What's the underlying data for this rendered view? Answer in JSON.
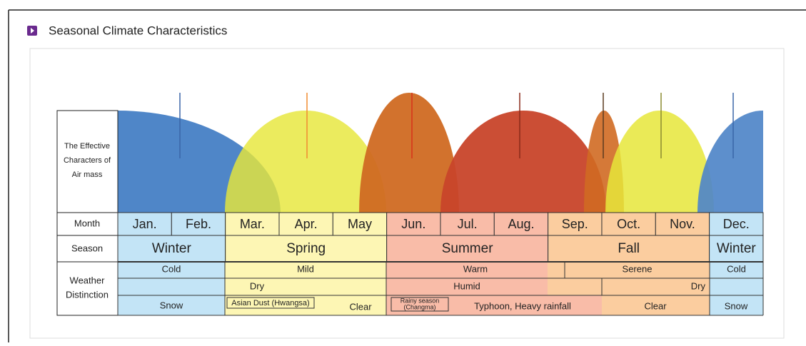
{
  "title": "Seasonal Climate Characteristics",
  "row_labels": {
    "air_mass": [
      "The Effective",
      "Characters of",
      "Air mass"
    ],
    "month": "Month",
    "season": "Season",
    "weather": [
      "Weather",
      "Distinction"
    ]
  },
  "months": [
    "Jan.",
    "Feb.",
    "Mar.",
    "Apr.",
    "May",
    "Jun.",
    "Jul.",
    "Aug.",
    "Sep.",
    "Oct.",
    "Nov.",
    "Dec."
  ],
  "seasons": [
    "Winter",
    "Spring",
    "Summer",
    "Fall",
    "Winter"
  ],
  "weather": {
    "temperature": [
      "Cold",
      "Mild",
      "Warm",
      "Serene",
      "Cold"
    ],
    "humidity": [
      "Dry",
      "Humid",
      "Dry"
    ],
    "phenomena": [
      "Snow",
      "Asian Dust (Hwangsa)",
      "Clear",
      [
        "Rainy season",
        "(Changma)"
      ],
      "Typhoon, Heavy rainfall",
      "Clear",
      "Snow"
    ]
  }
}
